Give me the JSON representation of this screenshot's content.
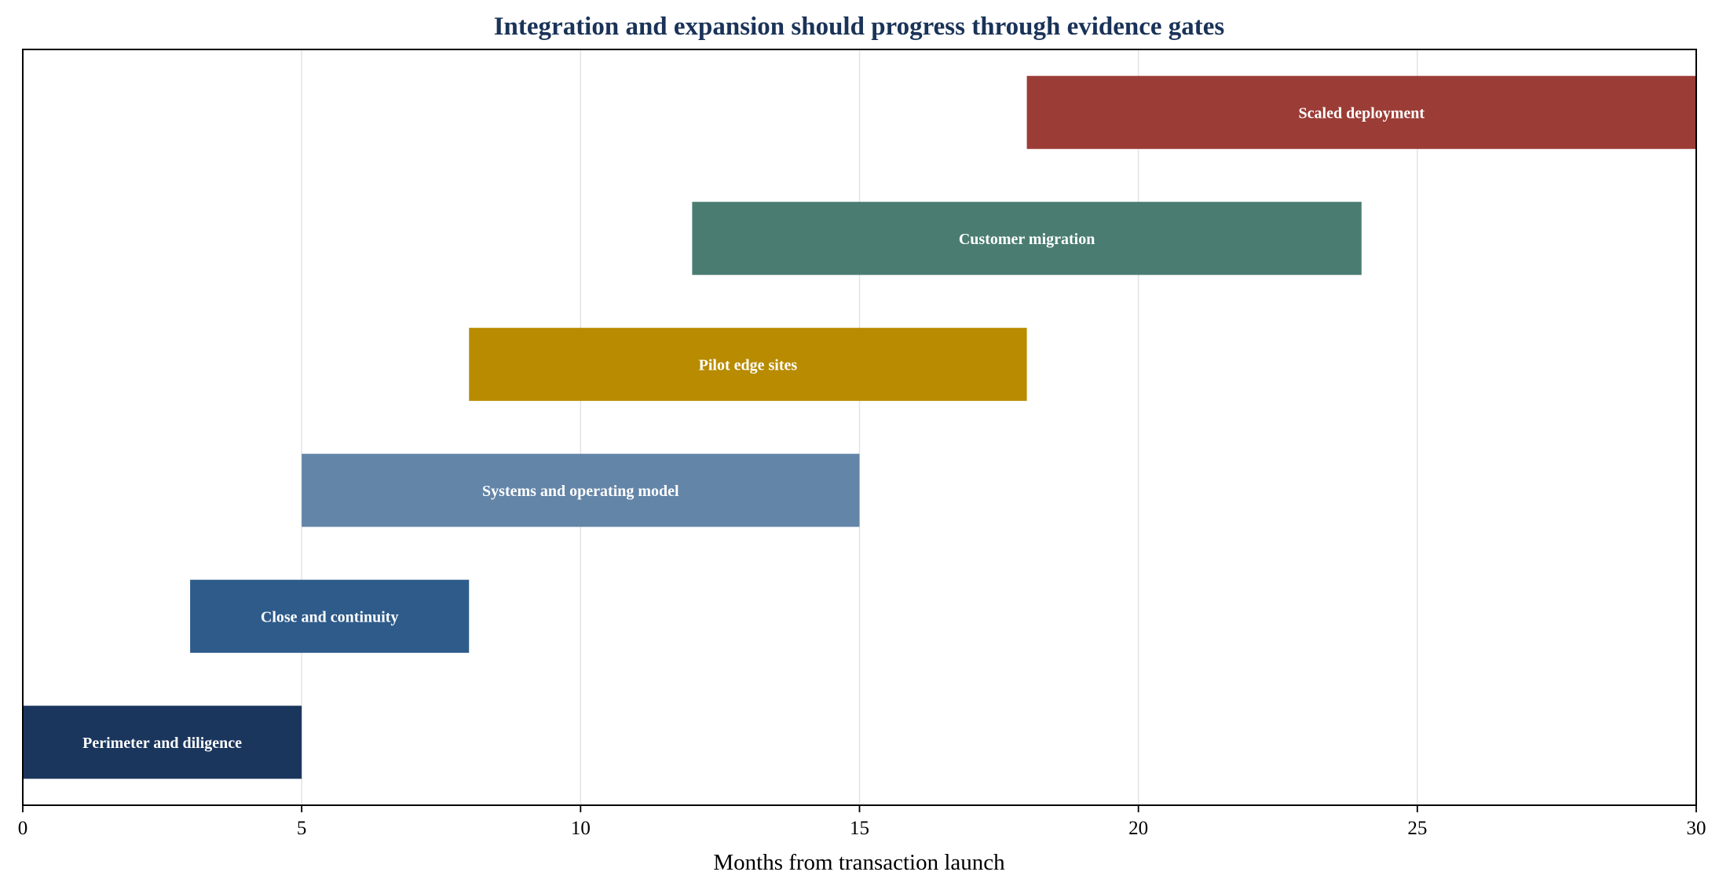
{
  "chart_data": {
    "type": "gantt",
    "title": "Integration and expansion should progress through evidence gates",
    "xlabel": "Months from transaction launch",
    "ylabel": "",
    "xlim": [
      0,
      30
    ],
    "xticks": [
      0,
      5,
      10,
      15,
      20,
      25,
      30
    ],
    "grid": "vertical",
    "legend": "none",
    "tasks": [
      {
        "label": "Perimeter and diligence",
        "start": 0,
        "end": 5,
        "color": "#1b365d"
      },
      {
        "label": "Close and continuity",
        "start": 3,
        "end": 8,
        "color": "#2e5b8a"
      },
      {
        "label": "Systems and operating model",
        "start": 5,
        "end": 15,
        "color": "#6385a8"
      },
      {
        "label": "Pilot edge sites",
        "start": 8,
        "end": 18,
        "color": "#b88b00"
      },
      {
        "label": "Customer migration",
        "start": 12,
        "end": 24,
        "color": "#4a7c72"
      },
      {
        "label": "Scaled deployment",
        "start": 18,
        "end": 30,
        "color": "#9b3d36"
      }
    ]
  }
}
